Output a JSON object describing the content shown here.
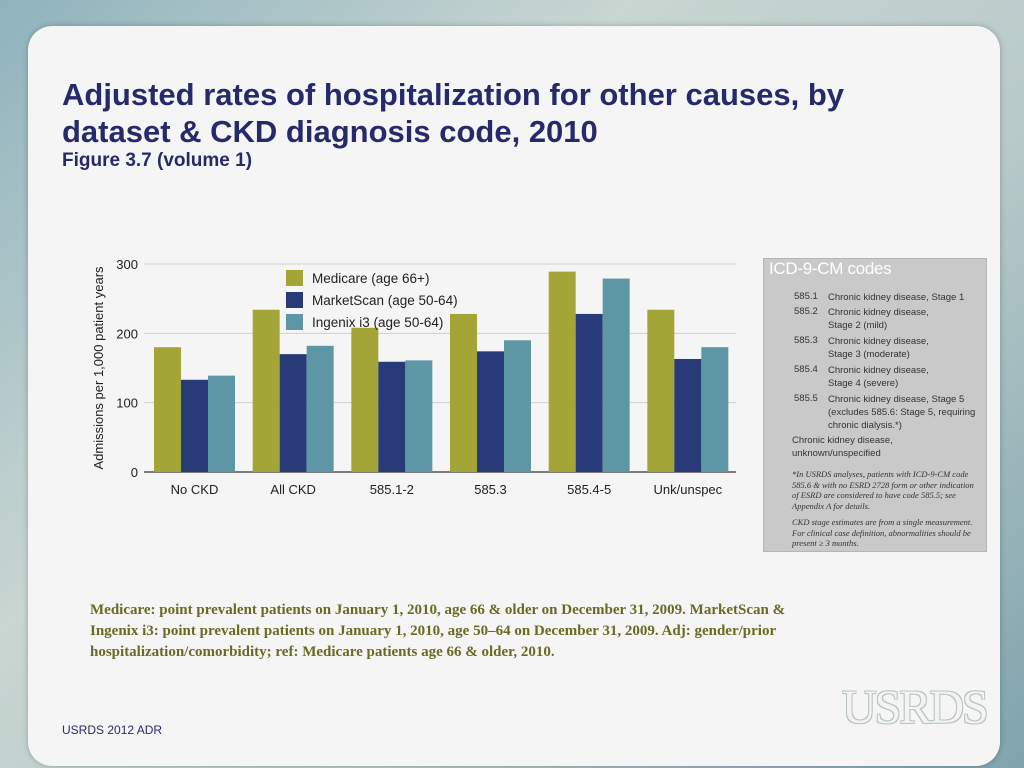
{
  "title": "Adjusted rates of hospitalization for other causes, by dataset & CKD diagnosis code, 2010",
  "subtitle": "Figure 3.7 (volume 1)",
  "chart_data": {
    "type": "bar",
    "title": "",
    "ylabel": "Admissions per 1,000 patient years",
    "xlabel": "",
    "ylim": [
      0,
      300
    ],
    "yticks": [
      "0",
      "100",
      "200",
      "300"
    ],
    "ytick_values": [
      0,
      100,
      200,
      300
    ],
    "grid": true,
    "legend_position": "top-left",
    "categories": [
      "No CKD",
      "All CKD",
      "585.1-2",
      "585.3",
      "585.4-5",
      "Unk/unspec"
    ],
    "series": [
      {
        "name": "Medicare (age 66+)",
        "color": "#a3a536",
        "values": [
          180,
          234,
          208,
          228,
          289,
          234
        ]
      },
      {
        "name": "MarketScan (age 50-64)",
        "color": "#283a77",
        "values": [
          133,
          170,
          159,
          174,
          228,
          163
        ]
      },
      {
        "name": "Ingenix i3 (age 50-64)",
        "color": "#5d96a4",
        "values": [
          139,
          182,
          161,
          190,
          279,
          180
        ]
      }
    ]
  },
  "sidebar": {
    "title": "ICD-9-CM codes",
    "codes": [
      {
        "code": "585.1",
        "desc": "Chronic kidney disease, Stage 1"
      },
      {
        "code": "585.2",
        "desc": "Chronic kidney disease, Stage 2 (mild)"
      },
      {
        "code": "585.3",
        "desc": "Chronic kidney disease, Stage 3 (moderate)"
      },
      {
        "code": "585.4",
        "desc": "Chronic kidney disease, Stage 4 (severe)"
      },
      {
        "code": "585.5",
        "desc": "Chronic kidney disease, Stage 5 (excludes 585.6: Stage 5, requiring chronic dialysis.*)"
      }
    ],
    "unknown": "Chronic kidney disease, unknown/unspecified",
    "note1": "*In USRDS analyses, patients with ICD-9-CM code 585.6 & with no ESRD 2728 form or other indication of ESRD are considered to have code 585.5; see Appendix A for details.",
    "note2": "CKD stage estimates are from a single measurement. For clinical case definition, abnormalities should be present ≥ 3 months."
  },
  "footnote": "Medicare: point prevalent patients on January 1, 2010, age 66 & older on December 31, 2009. MarketScan & Ingenix i3: point prevalent patients on January 1, 2010, age 50–64 on December 31, 2009. Adj: gender/prior hospitalization/comorbidity; ref: Medicare patients age 66 & older, 2010.",
  "footer": "USRDS 2012 ADR",
  "logo": "USRDS"
}
